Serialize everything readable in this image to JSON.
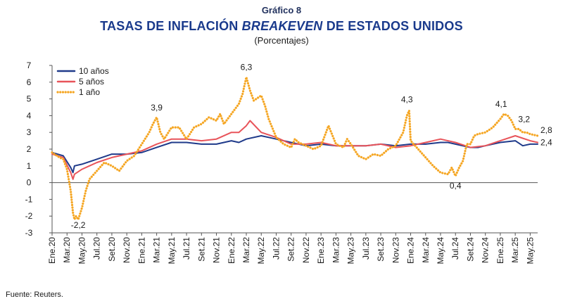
{
  "header": {
    "kicker": "Gráfico 8",
    "title_part1": "TASAS DE INFLACIÓN ",
    "title_italic": "BREAKEVEN",
    "title_part2": " DE ESTADOS UNIDOS",
    "subtitle": "(Porcentajes)"
  },
  "footer": {
    "source": "Fuente: Reuters."
  },
  "colors": {
    "ten_year": "#1f3a8a",
    "five_year": "#e8545a",
    "one_year": "#f5a623",
    "axis": "#555555"
  },
  "chart_data": {
    "type": "line",
    "title": "TASAS DE INFLACIÓN BREAKEVEN DE ESTADOS UNIDOS",
    "ylabel": "(Porcentajes)",
    "ylim": [
      -3,
      7
    ],
    "yticks": [
      7,
      6,
      5,
      4,
      3,
      2,
      1,
      0,
      -1,
      -2,
      -3
    ],
    "xlim": [
      0,
      65
    ],
    "x_tick_labels": [
      "Ene.20",
      "Mar.20",
      "May.20",
      "Jul.20",
      "Set.20",
      "Nov.20",
      "Ene.21",
      "Mar.21",
      "May.21",
      "Jul.21",
      "Set.21",
      "Nov.21",
      "Ene.22",
      "Mar.22",
      "May.22",
      "Jul.22",
      "Set.22",
      "Nov.22",
      "Ene.23",
      "Mar.23",
      "May.23",
      "Jul.23",
      "Set.23",
      "Nov.23",
      "Ene.24",
      "Mar.24",
      "May.24",
      "Jul.24",
      "Set.24",
      "Nov.24",
      "Ene.25",
      "Mar.25",
      "May.25"
    ],
    "legend_position": "top-left",
    "series": [
      {
        "name": "10 años",
        "style": "solid",
        "x": [
          0,
          1.5,
          2.5,
          2.8,
          3,
          4,
          6,
          8,
          10,
          12,
          14,
          16,
          18,
          20,
          22,
          24,
          25,
          26,
          28,
          30,
          32,
          34,
          36,
          38,
          40,
          42,
          44,
          46,
          48,
          50,
          52,
          53,
          54,
          56,
          57,
          58,
          60,
          62,
          63,
          64,
          65
        ],
        "y": [
          1.8,
          1.6,
          0.9,
          0.6,
          1.0,
          1.1,
          1.4,
          1.7,
          1.7,
          1.8,
          2.1,
          2.4,
          2.4,
          2.3,
          2.3,
          2.5,
          2.4,
          2.6,
          2.8,
          2.6,
          2.4,
          2.2,
          2.3,
          2.2,
          2.2,
          2.2,
          2.3,
          2.2,
          2.3,
          2.3,
          2.4,
          2.4,
          2.3,
          2.1,
          2.1,
          2.2,
          2.4,
          2.5,
          2.2,
          2.3,
          2.3
        ]
      },
      {
        "name": "5 años",
        "style": "solid",
        "x": [
          0,
          1.5,
          2.5,
          2.8,
          3,
          4,
          6,
          8,
          10,
          12,
          14,
          16,
          18,
          20,
          22,
          24,
          25,
          26,
          26.5,
          28,
          30,
          32,
          34,
          36,
          38,
          40,
          42,
          44,
          46,
          48,
          50,
          52,
          54,
          56,
          58,
          60,
          62,
          64,
          65
        ],
        "y": [
          1.7,
          1.5,
          0.6,
          0.2,
          0.5,
          0.8,
          1.2,
          1.5,
          1.7,
          1.9,
          2.3,
          2.6,
          2.6,
          2.5,
          2.6,
          3.0,
          3.0,
          3.4,
          3.7,
          3.0,
          2.7,
          2.3,
          2.3,
          2.4,
          2.2,
          2.2,
          2.2,
          2.3,
          2.1,
          2.2,
          2.4,
          2.6,
          2.4,
          2.1,
          2.2,
          2.5,
          2.8,
          2.5,
          2.4
        ]
      },
      {
        "name": "1 año",
        "style": "dotted",
        "x": [
          0,
          1,
          1.5,
          2,
          2.5,
          2.8,
          3,
          3.2,
          3.5,
          4,
          4.5,
          5,
          6,
          7,
          8,
          9,
          10,
          11,
          12,
          13,
          13.5,
          14,
          14.5,
          15,
          16,
          17,
          18,
          19,
          20,
          21,
          22,
          22.5,
          23,
          24,
          25,
          25.5,
          26,
          26.5,
          27,
          28,
          28.5,
          29,
          30,
          31,
          32,
          32.5,
          33,
          34,
          35,
          36,
          37,
          38,
          39,
          39.5,
          40,
          41,
          42,
          43,
          44,
          45,
          46,
          47,
          47.5,
          47.8,
          48,
          49,
          50,
          51,
          52,
          53,
          53.5,
          54,
          54.5,
          55,
          55.5,
          56,
          56.5,
          57,
          58,
          59,
          60,
          60.5,
          61,
          61.5,
          62,
          62.5,
          63,
          63.5,
          64,
          65
        ],
        "y": [
          1.8,
          1.5,
          1.4,
          0.8,
          -0.5,
          -1.8,
          -2.2,
          -2.0,
          -2.2,
          -1.5,
          -0.5,
          0.2,
          0.7,
          1.2,
          1.0,
          0.7,
          1.3,
          1.6,
          2.3,
          3.0,
          3.5,
          3.9,
          3.0,
          2.6,
          3.3,
          3.3,
          2.6,
          3.3,
          3.5,
          3.9,
          3.7,
          4.1,
          3.5,
          4.1,
          4.7,
          5.3,
          6.3,
          5.5,
          4.9,
          5.2,
          4.6,
          3.8,
          2.7,
          2.3,
          2.1,
          2.6,
          2.4,
          2.2,
          2.0,
          2.2,
          3.4,
          2.3,
          2.1,
          2.6,
          2.3,
          1.6,
          1.4,
          1.7,
          1.6,
          2.0,
          2.2,
          3.0,
          4.0,
          4.3,
          2.5,
          2.0,
          1.5,
          1.0,
          0.6,
          0.5,
          0.9,
          0.4,
          0.9,
          1.3,
          2.3,
          2.3,
          2.8,
          2.9,
          3.0,
          3.3,
          3.8,
          4.1,
          4.0,
          3.7,
          3.2,
          3.2,
          3.0,
          3.0,
          2.9,
          2.8
        ]
      }
    ],
    "annotations": [
      {
        "x": 3.5,
        "y": -2.2,
        "text": "-2,2"
      },
      {
        "x": 14,
        "y": 3.9,
        "text": "3,9"
      },
      {
        "x": 26,
        "y": 6.3,
        "text": "6,3"
      },
      {
        "x": 47.5,
        "y": 4.3,
        "text": "4,3"
      },
      {
        "x": 54,
        "y": 0.4,
        "text": "0,4"
      },
      {
        "x": 60.5,
        "y": 4.1,
        "text": "4,1"
      },
      {
        "x": 63,
        "y": 3.2,
        "text": "3,2"
      },
      {
        "x": 65,
        "y": 2.8,
        "text": "2,8"
      },
      {
        "x": 65,
        "y": 2.4,
        "text": "2,4"
      }
    ]
  }
}
